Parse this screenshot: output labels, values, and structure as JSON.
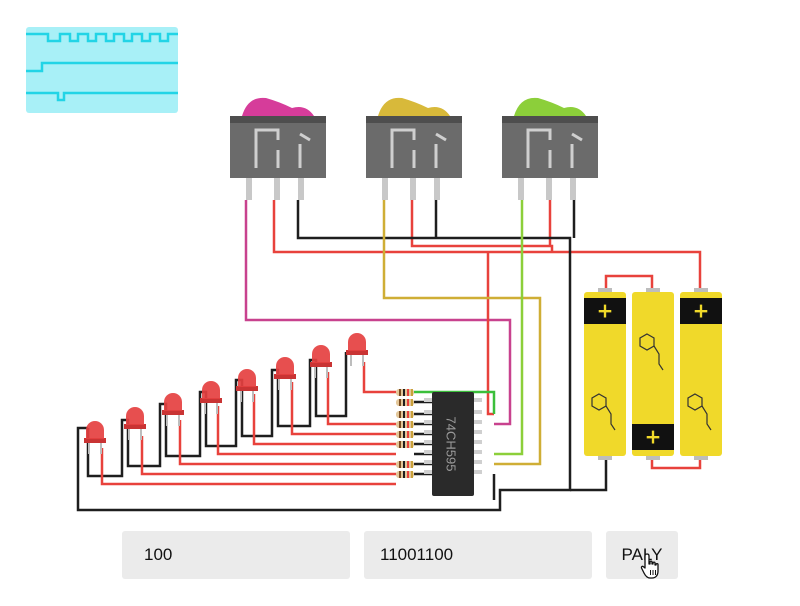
{
  "controls": {
    "speed_value": "100",
    "pattern_value": "11001100",
    "play_label": "PALY"
  },
  "chip": {
    "label": "74CH595"
  },
  "switches": [
    {
      "name": "switch-magenta",
      "color": "#d63c9a"
    },
    {
      "name": "switch-yellow",
      "color": "#d8b93a"
    },
    {
      "name": "switch-green",
      "color": "#8ccf3a"
    }
  ],
  "batteries": [
    {
      "terminal": "+",
      "orientation": "plus-top"
    },
    {
      "terminal": "+",
      "orientation": "plus-bottom"
    },
    {
      "terminal": "+",
      "orientation": "plus-top"
    }
  ],
  "led_count": 8,
  "colors": {
    "wire_red": "#e8423c",
    "wire_black": "#1e1e1e",
    "wire_magenta": "#c8428e",
    "wire_yellow": "#cfae35",
    "wire_green": "#8ccf3a",
    "led_red": "#e54040",
    "battery_yellow": "#f0d92a",
    "switch_body": "#6b6b6b",
    "scope_bg": "#a8f0f7",
    "scope_trace": "#22d4e6"
  },
  "icons": {
    "cursor": "hand-pointer-icon"
  }
}
